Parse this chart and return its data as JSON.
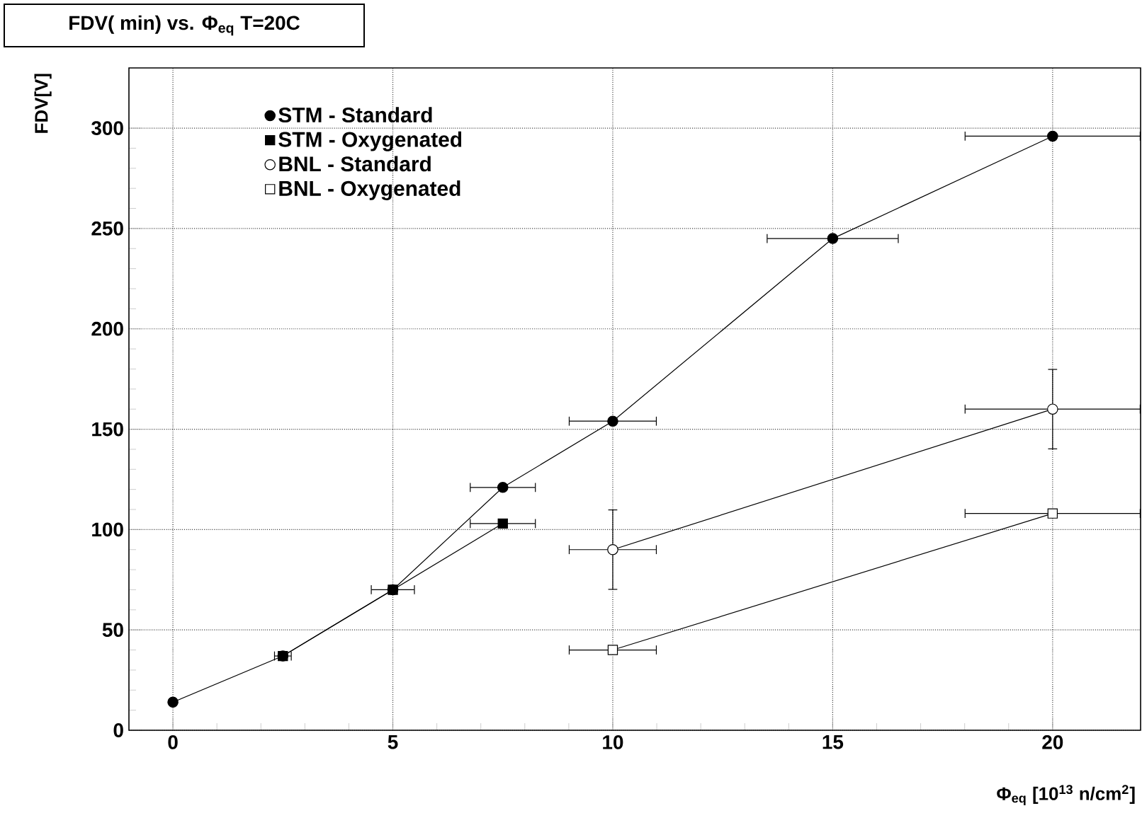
{
  "chart_data": {
    "type": "line",
    "title": "FDV( min) vs.  Φ$_{eq}$ T=20C",
    "xlabel": "Φ$_{eq}$ [10$^{13}$ n/cm$^{2}$]",
    "ylabel": "FDV[V]",
    "xlim": [
      -1,
      22
    ],
    "ylim": [
      0,
      330
    ],
    "xticks": [
      0,
      5,
      10,
      15,
      20
    ],
    "yticks": [
      0,
      50,
      100,
      150,
      200,
      250,
      300
    ],
    "grid": true,
    "legend": "top left",
    "series": [
      {
        "name": "STM - Standard",
        "color": "#000000",
        "marker": "circle",
        "x": [
          0,
          2.5,
          5,
          7.5,
          10,
          15,
          20
        ],
        "values": [
          14,
          37,
          70,
          121,
          154,
          245,
          296
        ],
        "xerrors": [
          null,
          0.2,
          0.5,
          0.75,
          1,
          1.5,
          2
        ]
      },
      {
        "name": "STM - Oxygenated",
        "color": "#000000",
        "marker": "square",
        "x": [
          2.5,
          5,
          7.5
        ],
        "values": [
          37,
          70,
          103
        ],
        "xerrors": [
          null,
          null,
          0.75
        ]
      },
      {
        "name": "BNL - Standard",
        "color": "#000000",
        "marker": "circle-open",
        "x": [
          10,
          20
        ],
        "values": [
          90,
          160
        ],
        "xerrors": [
          1,
          2
        ],
        "errors": [
          20,
          20
        ]
      },
      {
        "name": "BNL - Oxygenated",
        "color": "#000000",
        "marker": "square-open",
        "x": [
          10,
          20
        ],
        "values": [
          40,
          108
        ],
        "xerrors": [
          1,
          2
        ]
      }
    ]
  }
}
